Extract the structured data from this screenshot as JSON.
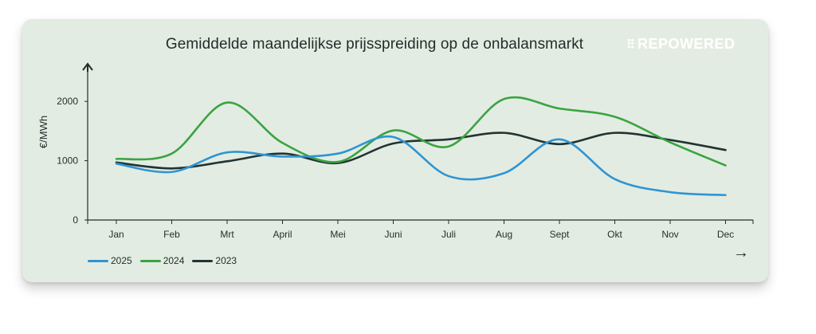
{
  "brand": {
    "logo_text": "REPOWERED"
  },
  "controls": {
    "next_arrow": "→"
  },
  "chart_data": {
    "type": "line",
    "title": "Gemiddelde maandelijkse prijsspreiding op de onbalansmarkt",
    "ylabel": "€/MWh",
    "xlabel": "",
    "ylim": [
      0,
      2500
    ],
    "yticks": [
      0,
      1000,
      2000
    ],
    "grid": false,
    "legend_position": "bottom-left",
    "categories": [
      "Jan",
      "Feb",
      "Mrt",
      "April",
      "Mei",
      "Juni",
      "Juli",
      "Aug",
      "Sept",
      "Okt",
      "Nov",
      "Dec"
    ],
    "series": [
      {
        "name": "2025",
        "color": "#2e95d3",
        "values": [
          950,
          810,
          1140,
          1070,
          1120,
          1400,
          740,
          790,
          1360,
          690,
          470,
          420
        ]
      },
      {
        "name": "2024",
        "color": "#3aa441",
        "values": [
          1030,
          1120,
          1980,
          1300,
          980,
          1510,
          1240,
          2040,
          1880,
          1740,
          1310,
          920
        ]
      },
      {
        "name": "2023",
        "color": "#213433",
        "values": [
          970,
          870,
          990,
          1120,
          960,
          1290,
          1360,
          1470,
          1280,
          1470,
          1350,
          1180
        ]
      }
    ]
  }
}
